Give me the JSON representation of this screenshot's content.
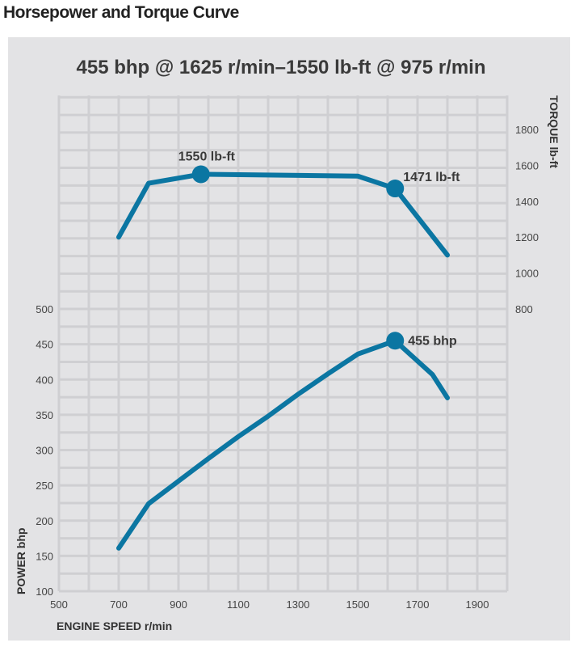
{
  "chart_data": {
    "type": "line",
    "title": "Horsepower and Torque Curve",
    "subtitle": "455 bhp @ 1625 r/min–1550 lb-ft @ 975 r/min",
    "xlabel": "ENGINE SPEED r/min",
    "ylabel_left": "POWER bhp",
    "ylabel_right": "TORQUE lb-ft",
    "xlim": [
      500,
      2000
    ],
    "ylim_left": [
      100,
      500
    ],
    "ylim_right": [
      800,
      1800
    ],
    "x_ticks": [
      "500",
      "700",
      "900",
      "1100",
      "1300",
      "1500",
      "1700",
      "1900"
    ],
    "y_ticks_left": [
      "100",
      "150",
      "200",
      "250",
      "300",
      "350",
      "400",
      "450",
      "500"
    ],
    "y_ticks_right": [
      "800",
      "1000",
      "1200",
      "1400",
      "1600",
      "1800"
    ],
    "grid": true,
    "line_color": "#0b76a2",
    "series": [
      {
        "name": "Torque",
        "axis": "right",
        "x": [
          700,
          800,
          975,
          1500,
          1625,
          1800
        ],
        "y": [
          1200,
          1500,
          1550,
          1540,
          1471,
          1100
        ]
      },
      {
        "name": "Power",
        "axis": "left",
        "x": [
          700,
          800,
          900,
          1000,
          1100,
          1200,
          1300,
          1400,
          1500,
          1625,
          1750,
          1800
        ],
        "y": [
          161,
          224,
          256,
          288,
          319,
          348,
          379,
          408,
          436,
          455,
          407,
          374
        ]
      }
    ],
    "annotations": [
      {
        "label": "1550 lb-ft",
        "x": 975,
        "y": 1550,
        "axis": "right"
      },
      {
        "label": "1471 lb-ft",
        "x": 1625,
        "y": 1471,
        "axis": "right"
      },
      {
        "label": "455 bhp",
        "x": 1625,
        "y": 455,
        "axis": "left"
      }
    ]
  }
}
